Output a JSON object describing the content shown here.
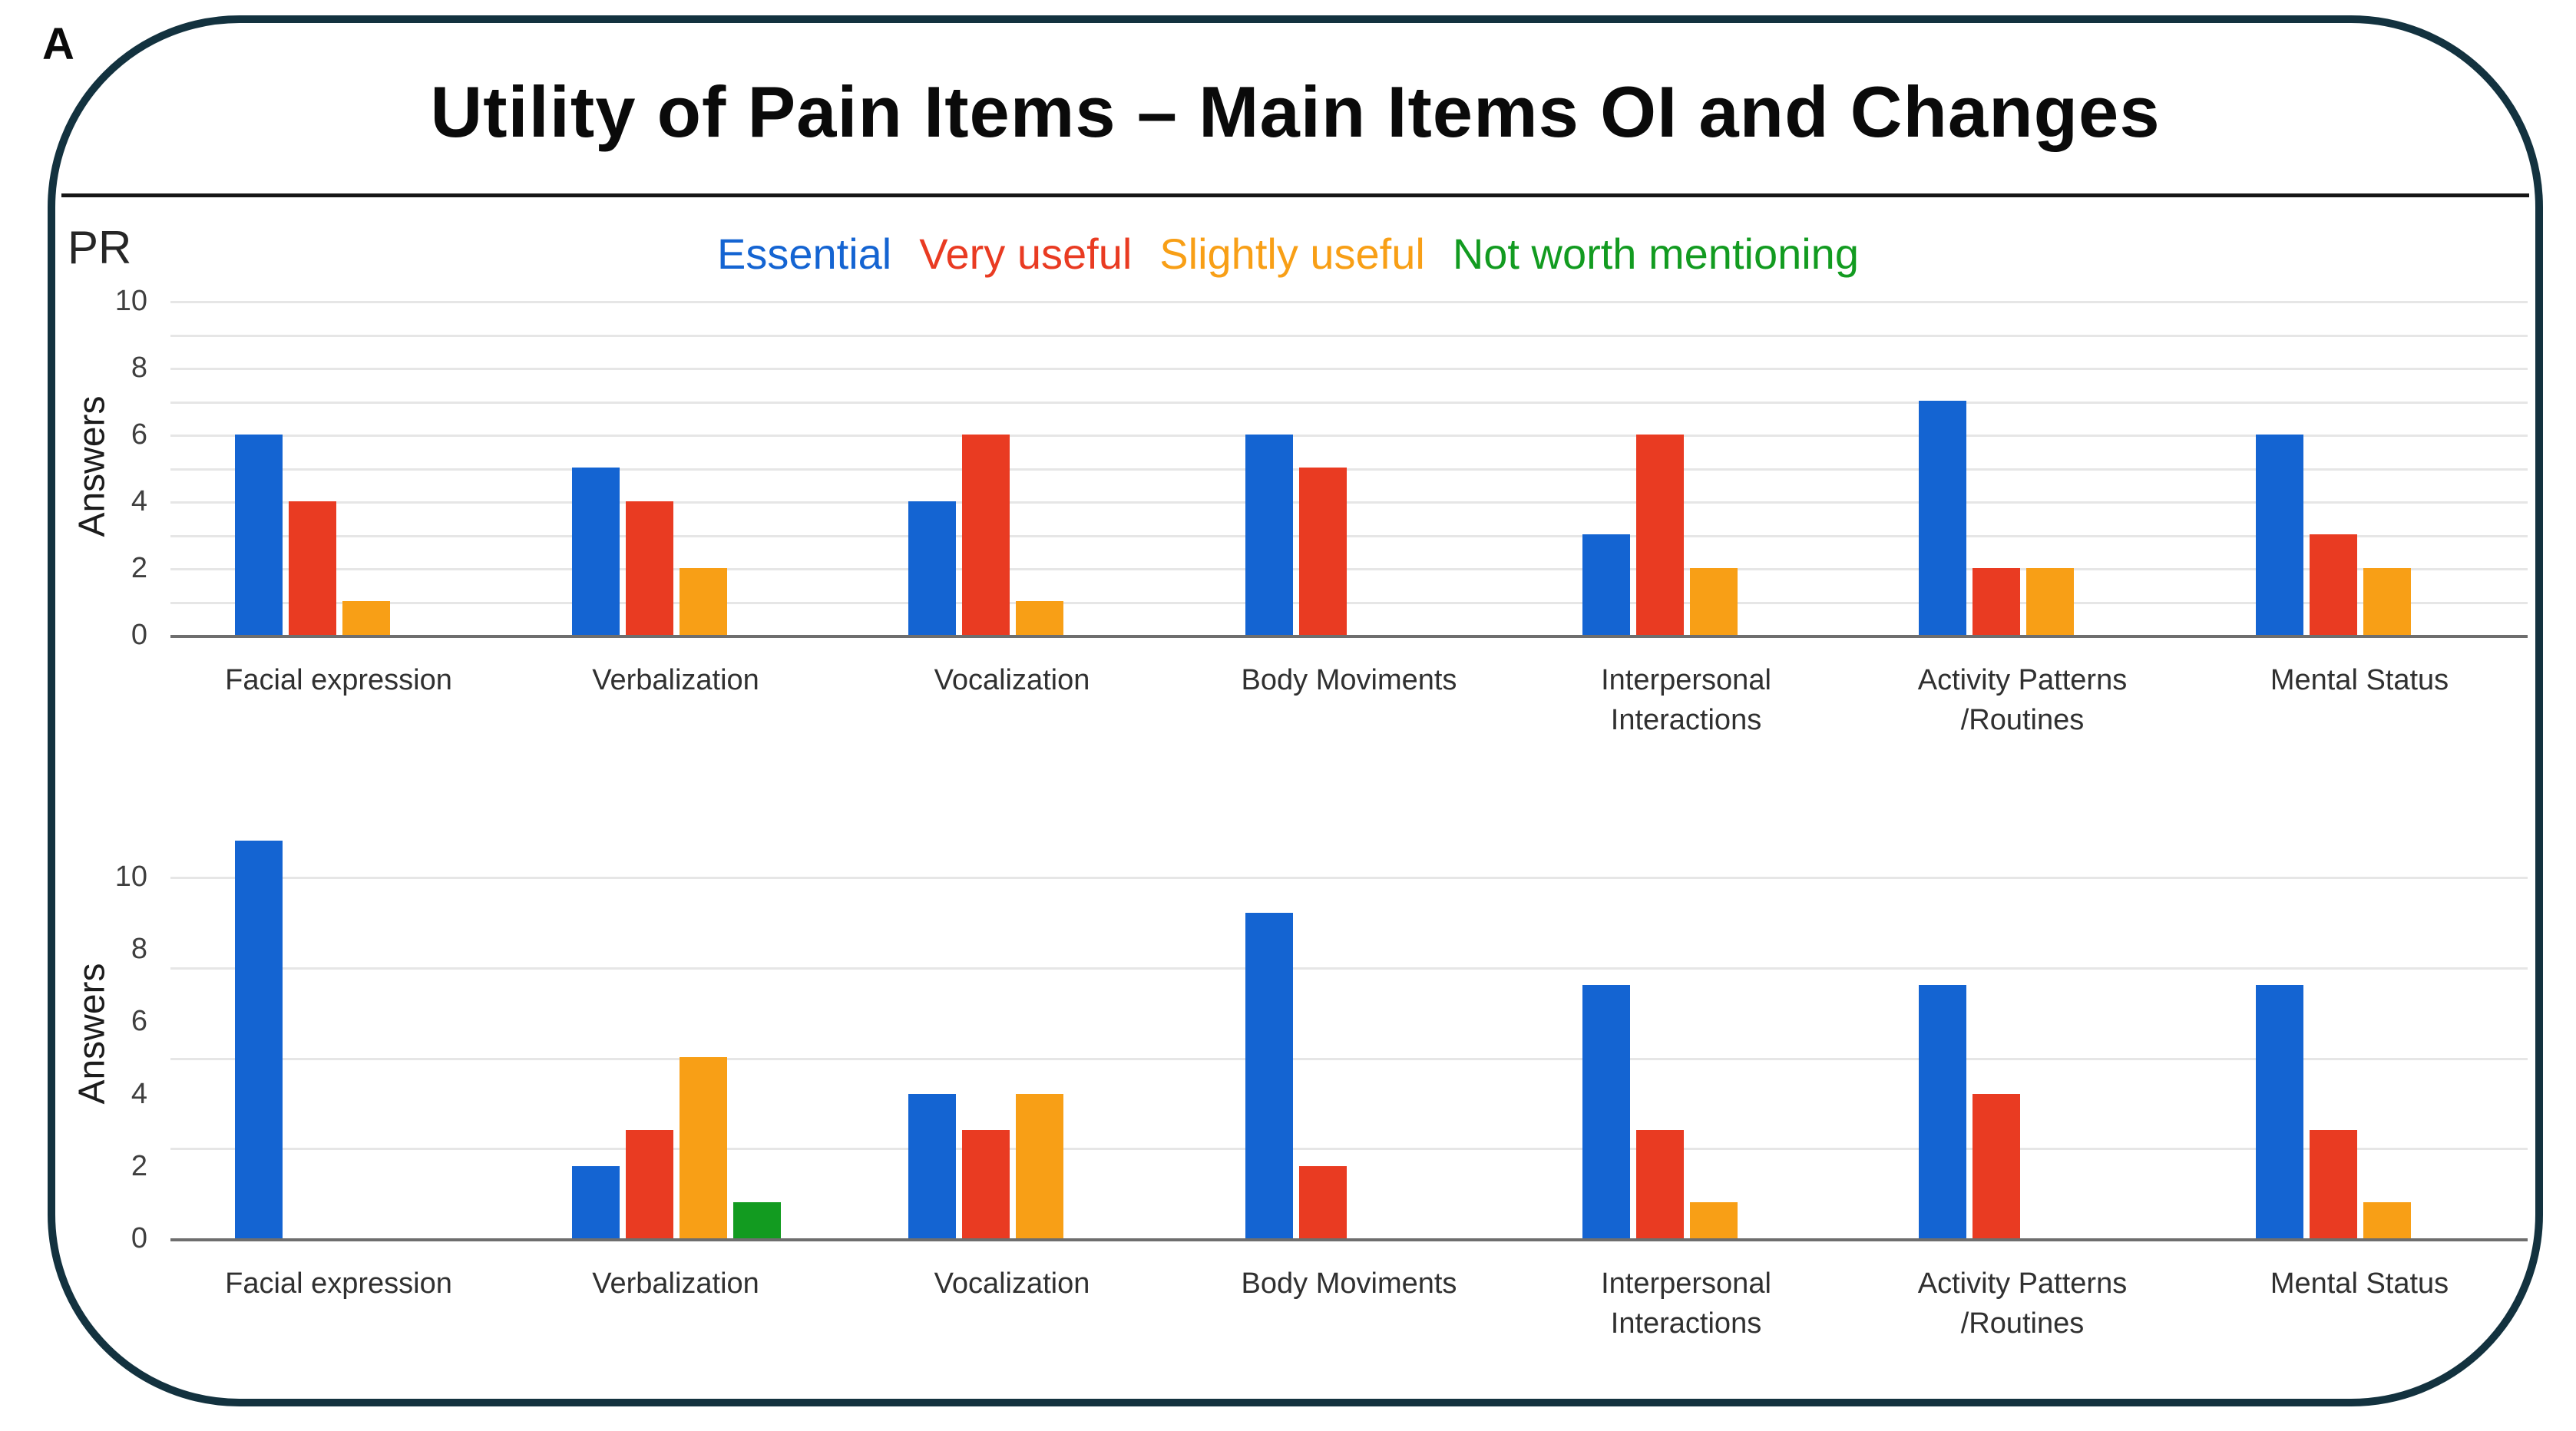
{
  "figure": {
    "panel_label": "A",
    "title": "Utility of Pain Items – Main Items OI and Changes",
    "corner_note": "PR"
  },
  "legend": [
    {
      "label": "Essential",
      "color": "#1464d2"
    },
    {
      "label": "Very useful",
      "color": "#e93b22"
    },
    {
      "label": "Slightly useful",
      "color": "#f89f16"
    },
    {
      "label": "Not worth mentioning",
      "color": "#129b20"
    }
  ],
  "colors": {
    "panel_border": "#13323f",
    "gridline": "#e6e6e6",
    "axis": "#6e6e6e",
    "essential_blue": "#1464d2",
    "very_useful_red": "#e93b22",
    "slightly_useful_orange": "#f89f16",
    "not_worth_mentioning_green": "#129b20"
  },
  "chart_data": [
    {
      "type": "bar",
      "position": "top",
      "title": "",
      "xlabel": "",
      "ylabel": "Answers",
      "categories": [
        "Facial expression",
        "Verbalization",
        "Vocalization",
        "Body Moviments",
        "Interpersonal Interactions",
        "Activity Patterns /Routines",
        "Mental Status"
      ],
      "category_label_lines": [
        [
          "Facial expression"
        ],
        [
          "Verbalization"
        ],
        [
          "Vocalization"
        ],
        [
          "Body Moviments"
        ],
        [
          "Interpersonal",
          "Interactions"
        ],
        [
          "Activity Patterns",
          "/Routines"
        ],
        [
          "Mental Status"
        ]
      ],
      "series": [
        {
          "name": "Essential",
          "color": "#1464d2",
          "values": [
            6,
            5,
            4,
            6,
            3,
            7,
            6
          ]
        },
        {
          "name": "Very useful",
          "color": "#e93b22",
          "values": [
            4,
            4,
            6,
            5,
            6,
            2,
            3
          ]
        },
        {
          "name": "Slightly useful",
          "color": "#f89f16",
          "values": [
            1,
            2,
            1,
            0,
            2,
            2,
            2
          ]
        },
        {
          "name": "Not worth mentioning",
          "color": "#129b20",
          "values": [
            0,
            0,
            0,
            0,
            0,
            0,
            0
          ]
        }
      ],
      "ylim": [
        0,
        10
      ],
      "yticks": [
        0,
        2,
        4,
        6,
        8,
        10
      ],
      "gridlines": [
        1,
        2,
        3,
        4,
        5,
        6,
        7,
        8,
        9,
        10
      ],
      "grid": true,
      "legend_position": "top"
    },
    {
      "type": "bar",
      "position": "bottom",
      "title": "",
      "xlabel": "",
      "ylabel": "Answers",
      "categories": [
        "Facial expression",
        "Verbalization",
        "Vocalization",
        "Body Moviments",
        "Interpersonal Interactions",
        "Activity Patterns /Routines",
        "Mental Status"
      ],
      "category_label_lines": [
        [
          "Facial expression"
        ],
        [
          "Verbalization"
        ],
        [
          "Vocalization"
        ],
        [
          "Body Moviments"
        ],
        [
          "Interpersonal",
          "Interactions"
        ],
        [
          "Activity Patterns",
          "/Routines"
        ],
        [
          "Mental Status"
        ]
      ],
      "series": [
        {
          "name": "Essential",
          "color": "#1464d2",
          "values": [
            11,
            2,
            4,
            9,
            7,
            7,
            7
          ]
        },
        {
          "name": "Very useful",
          "color": "#e93b22",
          "values": [
            0,
            3,
            3,
            2,
            3,
            4,
            3
          ]
        },
        {
          "name": "Slightly useful",
          "color": "#f89f16",
          "values": [
            0,
            5,
            4,
            0,
            1,
            0,
            1
          ]
        },
        {
          "name": "Not worth mentioning",
          "color": "#129b20",
          "values": [
            0,
            1,
            0,
            0,
            0,
            0,
            0
          ]
        }
      ],
      "ylim": [
        0,
        11.2
      ],
      "yticks": [
        0,
        2,
        4,
        6,
        8,
        10
      ],
      "gridlines": [
        2.5,
        5,
        7.5,
        10
      ],
      "grid": true,
      "legend_position": "none"
    }
  ]
}
